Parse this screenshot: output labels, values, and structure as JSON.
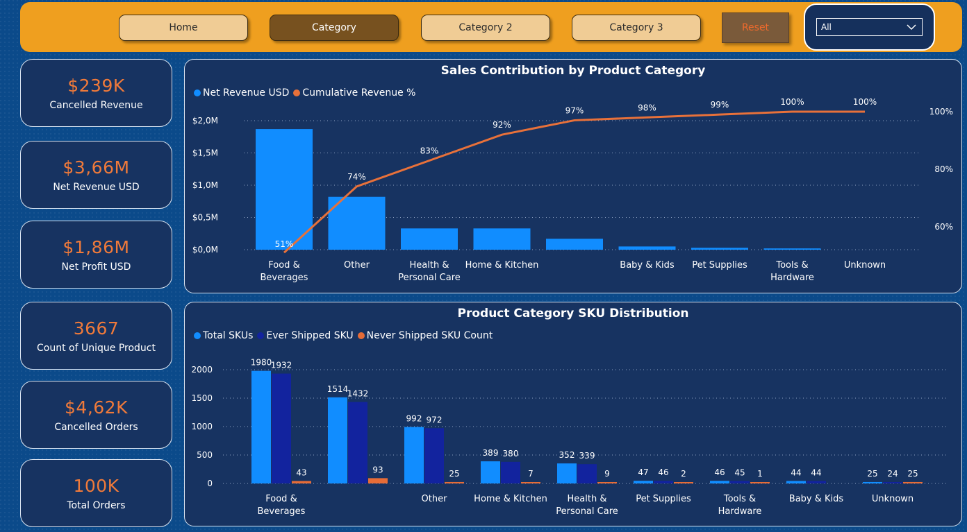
{
  "nav": {
    "buttons": [
      {
        "label": "Home",
        "active": false
      },
      {
        "label": "Category",
        "active": true
      },
      {
        "label": "Category 2",
        "active": false
      },
      {
        "label": "Category 3",
        "active": false
      }
    ],
    "reset_label": "Reset",
    "slicer_value": "All"
  },
  "kpis": [
    {
      "value": "$239K",
      "label": "Cancelled Revenue"
    },
    {
      "value": "$3,66M",
      "label": "Net Revenue USD"
    },
    {
      "value": "$1,86M",
      "label": "Net Profit USD"
    },
    {
      "value": "3667",
      "label": "Count of Unique Product"
    },
    {
      "value": "$4,62K",
      "label": "Cancelled Orders"
    },
    {
      "value": "100K",
      "label": "Total Orders"
    }
  ],
  "colors": {
    "accent_orange": "#ef9f1f",
    "net_revenue": "#118dff",
    "cumulative": "#e8713a",
    "ever_shipped": "#12239e",
    "never_shipped": "#e66c37",
    "kpi_value": "#f07a3a"
  },
  "chart_data": [
    {
      "type": "bar",
      "title": "Sales Contribution by Product Category",
      "categories": [
        "Food & Beverages",
        "Other",
        "Health & Personal Care",
        "Home & Kitchen",
        "",
        "Baby & Kids",
        "Pet Supplies",
        "Tools & Hardware",
        "Unknown"
      ],
      "category_lines": [
        [
          "Food &",
          "Beverages"
        ],
        [
          "Other"
        ],
        [
          "Health &",
          "Personal Care"
        ],
        [
          "Home & Kitchen"
        ],
        [],
        [
          "Baby & Kids"
        ],
        [
          "Pet Supplies"
        ],
        [
          "Tools &",
          "Hardware"
        ],
        [
          "Unknown"
        ]
      ],
      "series": [
        {
          "name": "Net Revenue USD",
          "type": "bar",
          "axis": "left",
          "values": [
            1.87,
            0.82,
            0.33,
            0.33,
            0.17,
            0.05,
            0.03,
            0.02,
            0.0
          ]
        },
        {
          "name": "Cumulative Revenue %",
          "type": "line",
          "axis": "right",
          "values": [
            51,
            74,
            83,
            92,
            97,
            98,
            99,
            100,
            100
          ],
          "labels": [
            "51%",
            "74%",
            "83%",
            "92%",
            "97%",
            "98%",
            "99%",
            "100%",
            "100%"
          ]
        }
      ],
      "y_left": {
        "ticks": [
          0,
          0.5,
          1.0,
          1.5,
          2.0
        ],
        "tick_labels": [
          "$0,0M",
          "$0,5M",
          "$1,0M",
          "$1,5M",
          "$2,0M"
        ],
        "ylim": [
          0,
          2.0
        ]
      },
      "y_right": {
        "ticks": [
          60,
          80,
          100
        ],
        "tick_labels": [
          "60%",
          "80%",
          "100%"
        ],
        "ylim": [
          52,
          100
        ]
      },
      "legend_position": "top-left",
      "grid": true
    },
    {
      "type": "bar",
      "title": "Product Category SKU Distribution",
      "categories": [
        "Food & Beverages",
        "",
        "Other",
        "Home & Kitchen",
        "Health & Personal Care",
        "Pet Supplies",
        "Tools & Hardware",
        "Baby & Kids",
        "Unknown"
      ],
      "category_lines": [
        [
          "Food &",
          "Beverages"
        ],
        [],
        [
          "Other"
        ],
        [
          "Home & Kitchen"
        ],
        [
          "Health &",
          "Personal Care"
        ],
        [
          "Pet Supplies"
        ],
        [
          "Tools &",
          "Hardware"
        ],
        [
          "Baby & Kids"
        ],
        [
          "Unknown"
        ]
      ],
      "series": [
        {
          "name": "Total SKUs",
          "values": [
            1980,
            1514,
            992,
            389,
            352,
            47,
            46,
            44,
            25
          ]
        },
        {
          "name": "Ever Shipped SKU",
          "values": [
            1932,
            1432,
            972,
            380,
            339,
            46,
            45,
            44,
            24
          ]
        },
        {
          "name": "Never Shipped SKU Count",
          "values": [
            43,
            93,
            25,
            7,
            9,
            2,
            1,
            null,
            25
          ]
        }
      ],
      "y": {
        "ticks": [
          0,
          500,
          1000,
          1500,
          2000
        ],
        "tick_labels": [
          "0",
          "500",
          "1000",
          "1500",
          "2000"
        ],
        "ylim": [
          0,
          2000
        ]
      },
      "legend_position": "top-left",
      "grid": true
    }
  ]
}
